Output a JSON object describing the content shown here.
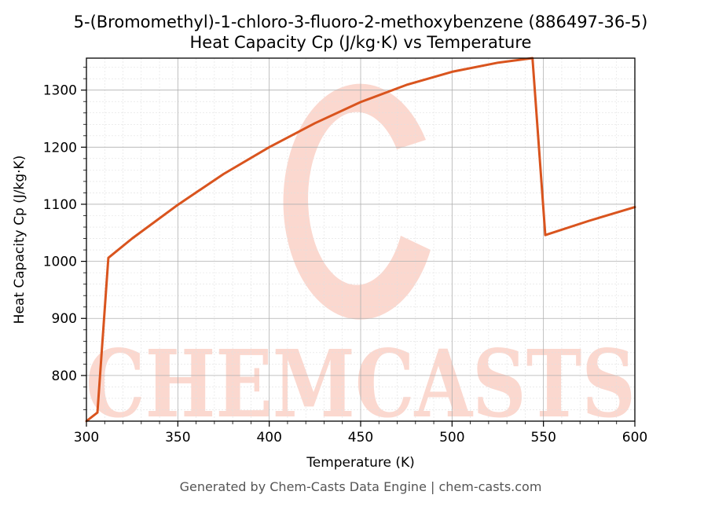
{
  "chart_data": {
    "type": "line",
    "title": "5-(Bromomethyl)-1-chloro-3-fluoro-2-methoxybenzene (886497-36-5)",
    "subtitle": "Heat Capacity Cp (J/kg·K) vs Temperature",
    "xlabel": "Temperature (K)",
    "ylabel": "Heat Capacity Cp (J/kg·K)",
    "xlim": [
      300,
      600
    ],
    "ylim": [
      720,
      1356
    ],
    "xticks": [
      300,
      350,
      400,
      450,
      500,
      550,
      600
    ],
    "yticks": [
      800,
      900,
      1000,
      1100,
      1200,
      1300
    ],
    "grid": true,
    "legend": "none",
    "series": [
      {
        "color": "#d9541e",
        "x": [
          300,
          306,
          312,
          325,
          350,
          375,
          400,
          425,
          450,
          475,
          500,
          525,
          544,
          551,
          575,
          600
        ],
        "y": [
          720,
          735,
          1006,
          1040,
          1099,
          1153,
          1200,
          1242,
          1279,
          1309,
          1332,
          1348,
          1356,
          1046,
          1071,
          1095
        ]
      }
    ]
  },
  "watermark": "CHEMCASTS",
  "footer": "Generated by Chem-Casts Data Engine | chem-casts.com",
  "colors": {
    "line": "#d9541e",
    "watermark": "#fbd8cf",
    "grid_major": "#b0b0b0",
    "grid_minor": "#e0e0e0"
  }
}
